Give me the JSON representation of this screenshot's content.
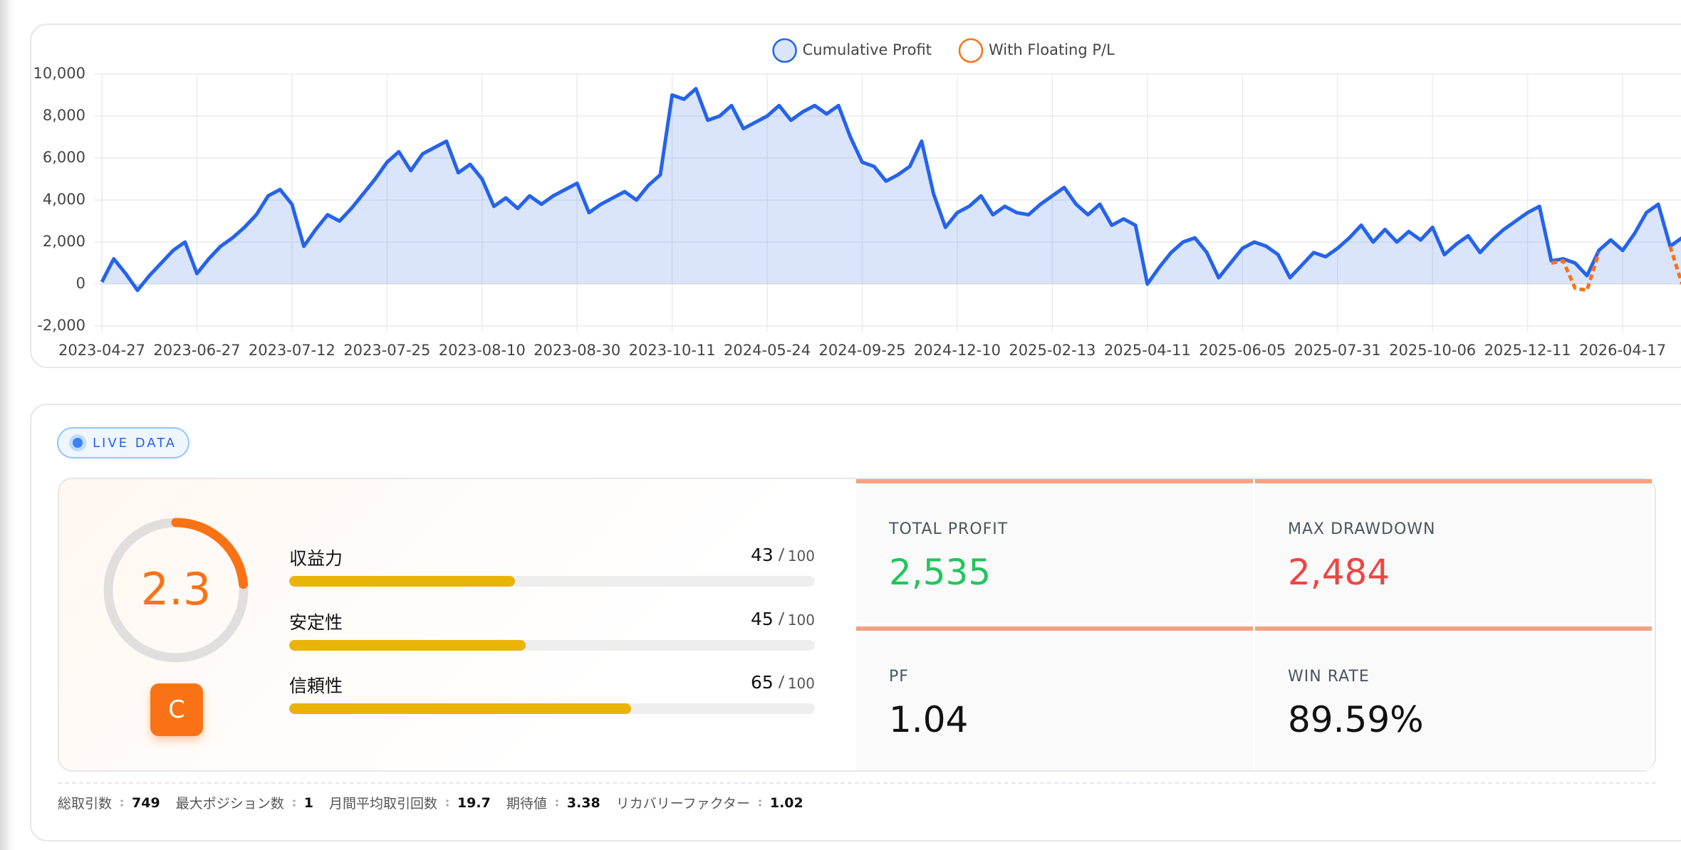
{
  "chart_data": {
    "type": "line",
    "categories": [
      "2023-04-27",
      null,
      null,
      null,
      null,
      null,
      null,
      null,
      "2023-06-27",
      null,
      null,
      null,
      null,
      null,
      null,
      null,
      "2023-07-12",
      null,
      null,
      null,
      null,
      null,
      null,
      null,
      "2023-07-25",
      null,
      null,
      null,
      null,
      null,
      null,
      null,
      "2023-08-10",
      null,
      null,
      null,
      null,
      null,
      null,
      null,
      "2023-08-30",
      null,
      null,
      null,
      null,
      null,
      null,
      null,
      "2023-10-11",
      null,
      null,
      null,
      null,
      null,
      null,
      null,
      "2024-05-24",
      null,
      null,
      null,
      null,
      null,
      null,
      null,
      "2024-09-25",
      null,
      null,
      null,
      null,
      null,
      null,
      null,
      "2024-12-10",
      null,
      null,
      null,
      null,
      null,
      null,
      null,
      "2025-02-13",
      null,
      null,
      null,
      null,
      null,
      null,
      null,
      "2025-04-11",
      null,
      null,
      null,
      null,
      null,
      null,
      null,
      "2025-06-05",
      null,
      null,
      null,
      null,
      null,
      null,
      null,
      "2025-07-31",
      null,
      null,
      null,
      null,
      null,
      null,
      null,
      "2025-10-06",
      null,
      null,
      null,
      null,
      null,
      null,
      null,
      "2025-12-11",
      null,
      null,
      null,
      null,
      null,
      null,
      null,
      "2026-04-17",
      null,
      null,
      null,
      null,
      null
    ],
    "series": [
      {
        "name": "Cumulative Profit",
        "color": "#2563eb",
        "fill": "rgba(37,99,235,0.17)",
        "values": [
          100,
          1200,
          500,
          -300,
          400,
          1000,
          1600,
          2000,
          500,
          1200,
          1800,
          2200,
          2700,
          3300,
          4200,
          4500,
          3800,
          1800,
          2600,
          3300,
          3000,
          3600,
          4300,
          5000,
          5800,
          6300,
          5400,
          6200,
          6500,
          6800,
          5300,
          5700,
          5000,
          3700,
          4100,
          3600,
          4200,
          3800,
          4200,
          4500,
          4800,
          3400,
          3800,
          4100,
          4400,
          4000,
          4700,
          5200,
          9000,
          8800,
          9300,
          7800,
          8000,
          8500,
          7400,
          7700,
          8000,
          8500,
          7800,
          8200,
          8500,
          8100,
          8500,
          7000,
          5800,
          5600,
          4900,
          5200,
          5600,
          6800,
          4300,
          2700,
          3400,
          3700,
          4200,
          3300,
          3700,
          3400,
          3300,
          3800,
          4200,
          4600,
          3800,
          3300,
          3800,
          2800,
          3100,
          2800,
          0,
          800,
          1500,
          2000,
          2200,
          1500,
          300,
          1000,
          1700,
          2000,
          1800,
          1400,
          300,
          900,
          1500,
          1300,
          1700,
          2200,
          2800,
          2000,
          2600,
          2000,
          2500,
          2100,
          2700,
          1400,
          1900,
          2300,
          1500,
          2100,
          2600,
          3000,
          3400,
          3700,
          1100,
          1200,
          1000,
          400,
          1600,
          2100,
          1600,
          2400,
          3400,
          3800,
          1800,
          2200
        ]
      },
      {
        "name": "With Floating P/L",
        "color": "#f97316",
        "dashed": true,
        "values": [
          null,
          null,
          null,
          null,
          null,
          null,
          null,
          null,
          null,
          null,
          null,
          null,
          null,
          null,
          null,
          null,
          null,
          null,
          null,
          null,
          null,
          null,
          null,
          null,
          null,
          null,
          null,
          null,
          null,
          null,
          null,
          null,
          null,
          null,
          null,
          null,
          null,
          null,
          null,
          null,
          null,
          null,
          null,
          null,
          null,
          null,
          null,
          null,
          null,
          null,
          null,
          null,
          null,
          null,
          null,
          null,
          null,
          null,
          null,
          null,
          null,
          null,
          null,
          null,
          null,
          null,
          null,
          null,
          null,
          null,
          null,
          null,
          null,
          null,
          null,
          null,
          null,
          null,
          null,
          null,
          null,
          null,
          null,
          null,
          null,
          null,
          null,
          null,
          null,
          null,
          null,
          null,
          null,
          null,
          null,
          null,
          null,
          null,
          null,
          null,
          null,
          null,
          null,
          null,
          null,
          null,
          null,
          null,
          null,
          null,
          null,
          null,
          null,
          null,
          null,
          null,
          null,
          null,
          null,
          null,
          null,
          null,
          1000,
          1100,
          -200,
          -300,
          1500,
          null,
          null,
          null,
          null,
          null,
          1800,
          0
        ]
      }
    ],
    "ylim": [
      -2000,
      10000
    ],
    "yticks": [
      {
        "value": -2000,
        "label": "-2,000"
      },
      0,
      {
        "value": 2000,
        "label": "2,000"
      },
      {
        "value": 4000,
        "label": "4,000"
      },
      {
        "value": 6000,
        "label": "6,000"
      },
      {
        "value": 8000,
        "label": "8,000"
      },
      {
        "value": 10000,
        "label": "10,000"
      }
    ],
    "grid": true,
    "legend": "top"
  },
  "badge": "LIVE DATA",
  "score": {
    "value": "2.3",
    "grade": "C"
  },
  "metrics": [
    {
      "label": "収益力",
      "score": 43,
      "max": 100
    },
    {
      "label": "安定性",
      "score": 45,
      "max": 100
    },
    {
      "label": "信頼性",
      "score": 65,
      "max": 100
    }
  ],
  "stats": [
    {
      "label": "TOTAL PROFIT",
      "value": "2,535",
      "color": "#22c55e"
    },
    {
      "label": "MAX DRAWDOWN",
      "value": "2,484",
      "color": "#ef4444"
    },
    {
      "label": "PF",
      "value": "1.04",
      "color": "#111111"
    },
    {
      "label": "WIN RATE",
      "value": "89.59%",
      "color": "#111111"
    }
  ],
  "footer": [
    {
      "label": "総取引数",
      "value": "749"
    },
    {
      "label": "最大ポジション数",
      "value": "1"
    },
    {
      "label": "月間平均取引回数",
      "value": "19.7"
    },
    {
      "label": "期待値",
      "value": "3.38"
    },
    {
      "label": "リカバリーファクター",
      "value": "1.02"
    }
  ]
}
